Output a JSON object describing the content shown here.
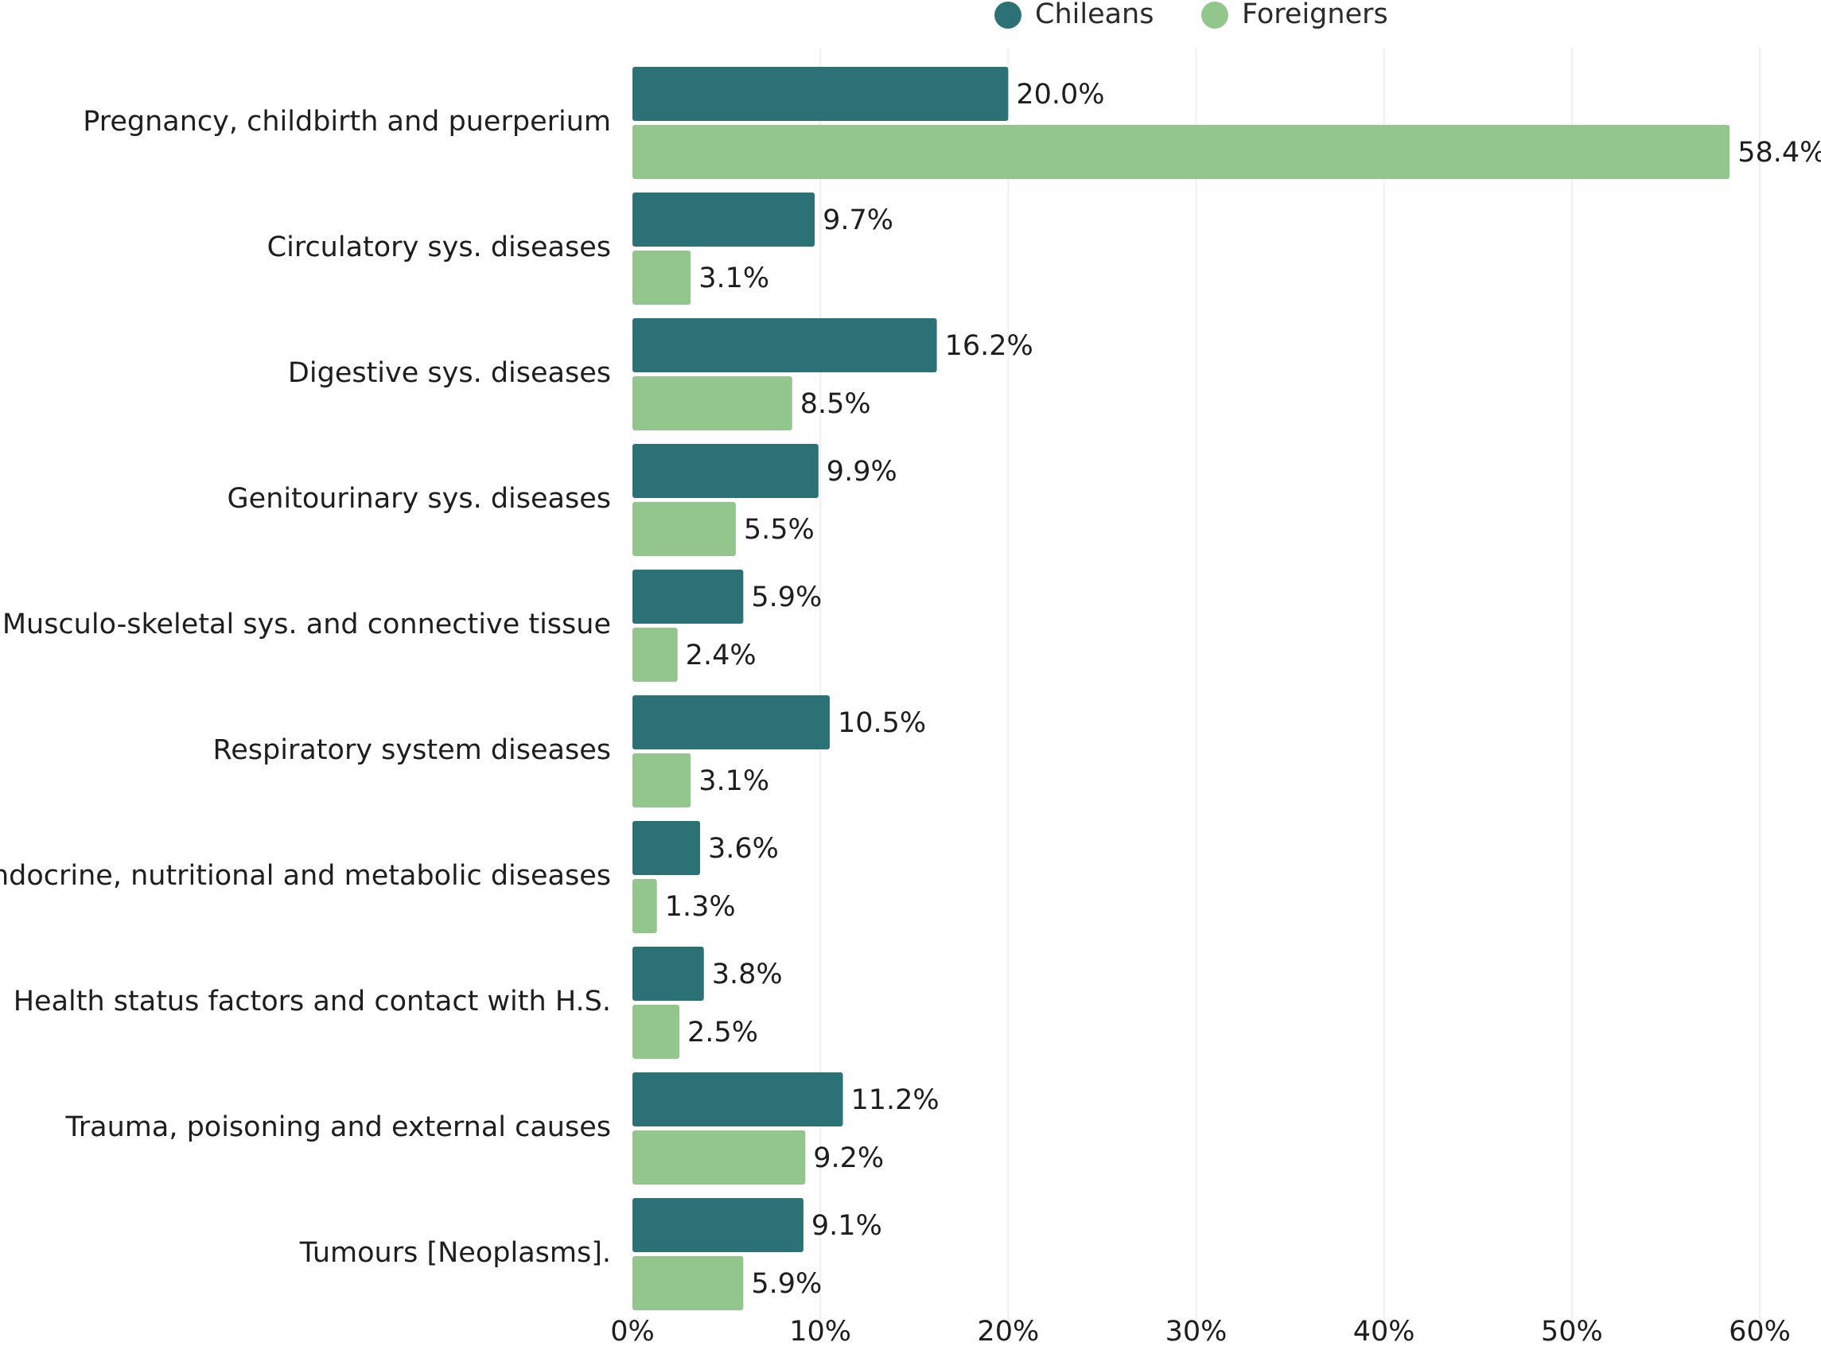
{
  "chart_data": {
    "type": "bar",
    "orientation": "horizontal",
    "title": "",
    "xlabel": "",
    "ylabel": "",
    "xlim": [
      0,
      60
    ],
    "tick_values": [
      0,
      10,
      20,
      30,
      40,
      50,
      60
    ],
    "tick_labels": [
      "0%",
      "10%",
      "20%",
      "30%",
      "40%",
      "50%",
      "60%"
    ],
    "grid": "vertical",
    "legend": "top-center",
    "categories": [
      "Pregnancy, childbirth and puerperium",
      "Circulatory sys. diseases",
      "Digestive sys. diseases",
      "Genitourinary sys. diseases",
      "Musculo-skeletal sys. and connective tissue",
      "Respiratory system diseases",
      "Endocrine, nutritional and metabolic diseases",
      "Health status factors and contact with H.S.",
      "Trauma, poisoning and external causes",
      "Tumours [Neoplasms]."
    ],
    "series": [
      {
        "name": "Chileans",
        "color": "#2b7176",
        "values": [
          20.0,
          9.7,
          16.2,
          9.9,
          5.9,
          10.5,
          3.6,
          3.8,
          11.2,
          9.1
        ],
        "labels": [
          "20.0%",
          "9.7%",
          "16.2%",
          "9.9%",
          "5.9%",
          "10.5%",
          "3.6%",
          "3.8%",
          "11.2%",
          "9.1%"
        ]
      },
      {
        "name": "Foreigners",
        "color": "#93c68d",
        "values": [
          58.4,
          3.1,
          8.5,
          5.5,
          2.4,
          3.1,
          1.3,
          2.5,
          9.2,
          5.9
        ],
        "labels": [
          "58.4%",
          "3.1%",
          "8.5%",
          "5.5%",
          "2.4%",
          "3.1%",
          "1.3%",
          "2.5%",
          "9.2%",
          "5.9%"
        ]
      }
    ]
  }
}
